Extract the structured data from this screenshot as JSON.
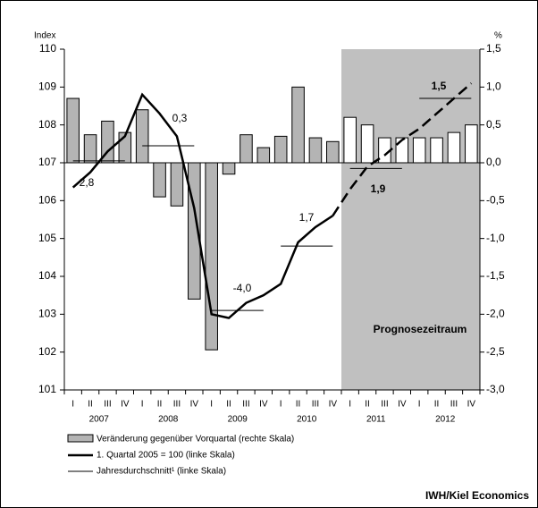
{
  "chart_data": {
    "type": "bar-line",
    "left_axis_label": "Index",
    "right_axis_label": "%",
    "categories": [
      "I",
      "II",
      "III",
      "IV",
      "I",
      "II",
      "III",
      "IV",
      "I",
      "II",
      "III",
      "IV",
      "I",
      "II",
      "III",
      "IV",
      "I",
      "II",
      "III",
      "IV",
      "I",
      "II",
      "III",
      "IV"
    ],
    "years": [
      "2007",
      "2008",
      "2009",
      "2010",
      "2011",
      "2012"
    ],
    "ylim": [
      101,
      110
    ],
    "yticks": [
      101,
      102,
      103,
      104,
      105,
      106,
      107,
      108,
      109,
      110
    ],
    "y2lim": [
      -3,
      1.5
    ],
    "y2ticks": [
      {
        "value": -3,
        "label": "-3,0"
      },
      {
        "value": -2.5,
        "label": "-2,5"
      },
      {
        "value": -2,
        "label": "-2,0"
      },
      {
        "value": -1.5,
        "label": "-1,5"
      },
      {
        "value": -1,
        "label": "-1,0"
      },
      {
        "value": -0.5,
        "label": "-0,5"
      },
      {
        "value": 0,
        "label": "0,0"
      },
      {
        "value": 0.5,
        "label": "0,5"
      },
      {
        "value": 1,
        "label": "1,0"
      },
      {
        "value": 1.5,
        "label": "1,5"
      }
    ],
    "bars": {
      "name": "Veränderung gegenüber Vorquartal (rechte Skala)",
      "axis": "y2",
      "values": [
        0.85,
        0.37,
        0.55,
        0.4,
        0.7,
        -0.45,
        -0.57,
        -1.8,
        -2.47,
        -0.15,
        0.37,
        0.2,
        0.35,
        1.0,
        0.33,
        0.28,
        0.6,
        0.5,
        0.33,
        0.33,
        0.33,
        0.33,
        0.4,
        0.5
      ],
      "colors": [
        "#b4b4b4",
        "#b4b4b4",
        "#b4b4b4",
        "#b4b4b4",
        "#b4b4b4",
        "#b4b4b4",
        "#b4b4b4",
        "#b4b4b4",
        "#b4b4b4",
        "#b4b4b4",
        "#b4b4b4",
        "#b4b4b4",
        "#b4b4b4",
        "#b4b4b4",
        "#b4b4b4",
        "#b4b4b4",
        "#ffffff",
        "#ffffff",
        "#ffffff",
        "#ffffff",
        "#ffffff",
        "#ffffff",
        "#ffffff",
        "#ffffff"
      ]
    },
    "line": {
      "name": "1. Quartal 2005 = 100 (linke Skala)",
      "color": "#000000",
      "values": [
        106.35,
        106.75,
        107.3,
        107.7,
        108.8,
        108.3,
        107.7,
        105.8,
        103.0,
        102.9,
        103.3,
        103.5,
        103.8,
        104.9,
        105.3,
        105.6,
        null,
        null,
        null,
        null,
        null,
        null,
        null,
        null
      ],
      "forecast": [
        null,
        null,
        null,
        null,
        null,
        null,
        null,
        null,
        null,
        null,
        null,
        null,
        null,
        null,
        null,
        105.6,
        106.3,
        106.9,
        107.2,
        107.6,
        107.9,
        108.3,
        108.7,
        109.1
      ]
    },
    "annual": {
      "name": "Jahresdurchschnitt¹ (linke Skala)",
      "values": [
        107.05,
        107.45,
        103.1,
        104.8,
        106.85,
        108.7
      ],
      "labels": [
        "2,8",
        "0,3",
        "-4,0",
        "1,7",
        "1,9",
        "1,5"
      ],
      "bold": [
        false,
        false,
        false,
        false,
        true,
        true
      ]
    },
    "forecast_label": "Prognosezeitraum",
    "forecast_fill": "#c0c0c0",
    "source": "IWH/Kiel Economics"
  }
}
